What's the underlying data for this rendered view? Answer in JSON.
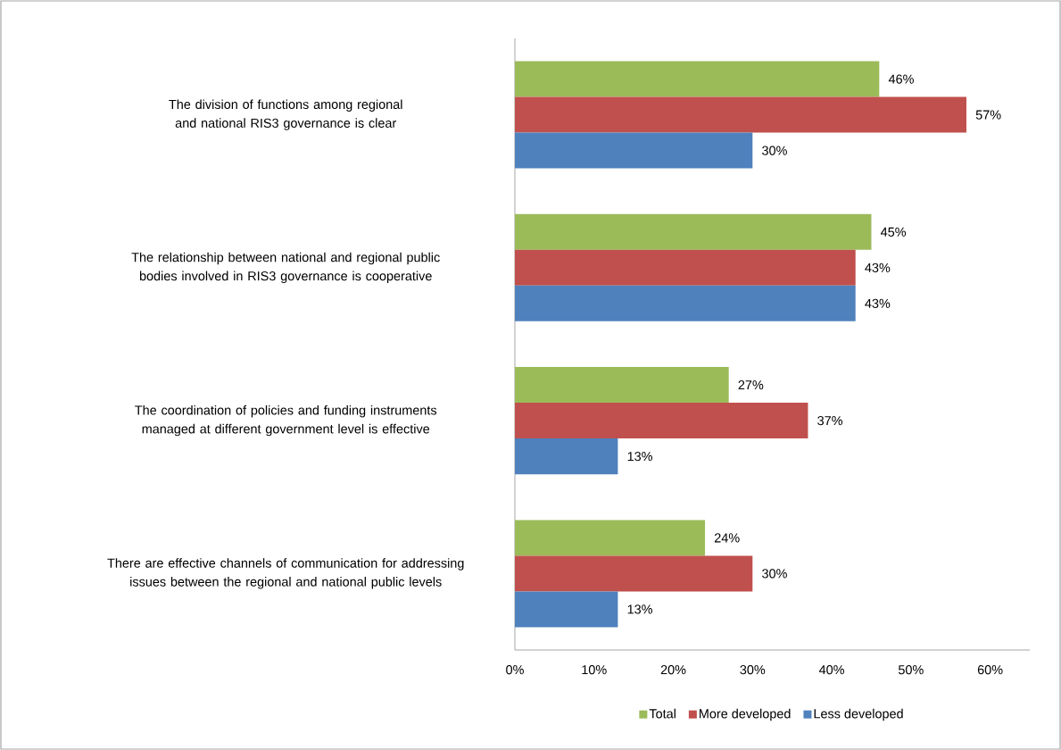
{
  "chart_data": {
    "type": "bar",
    "orientation": "horizontal",
    "categories": [
      "The division of functions among regional and national RIS3 governance is clear",
      "The relationship between national and regional public bodies involved in RIS3 governance is cooperative",
      "The coordination of policies and funding instruments managed at different government level is effective",
      "There are effective channels of communication for addressing issues between the regional and national public levels"
    ],
    "series": [
      {
        "name": "Total",
        "color": "#9bbb59",
        "values": [
          46,
          45,
          27,
          24
        ],
        "value_labels": [
          "46%",
          "45%",
          "27%",
          "24%"
        ]
      },
      {
        "name": "More developed",
        "color": "#c0504d",
        "values": [
          57,
          43,
          37,
          30
        ],
        "value_labels": [
          "57%",
          "43%",
          "37%",
          "30%"
        ]
      },
      {
        "name": "Less developed",
        "color": "#4f81bd",
        "values": [
          30,
          43,
          13,
          13
        ],
        "value_labels": [
          "30%",
          "43%",
          "13%",
          "13%"
        ]
      }
    ],
    "xlim": [
      0,
      65
    ],
    "xticks": [
      {
        "value": 0,
        "label": "0%"
      },
      {
        "value": 10,
        "label": "10%"
      },
      {
        "value": 20,
        "label": "20%"
      },
      {
        "value": 30,
        "label": "30%"
      },
      {
        "value": 40,
        "label": "40%"
      },
      {
        "value": 50,
        "label": "50%"
      },
      {
        "value": 60,
        "label": "60%"
      }
    ],
    "grid": false,
    "legend": "bottom"
  }
}
